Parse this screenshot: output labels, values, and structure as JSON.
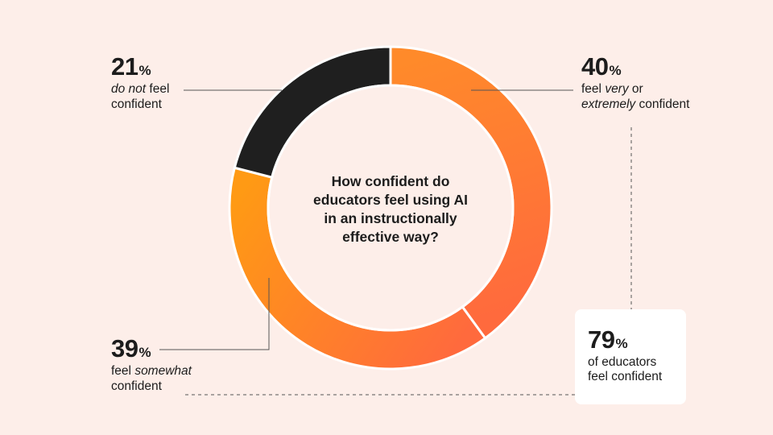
{
  "chart_data": {
    "type": "donut",
    "title": "How confident do educators feel using AI in an instructionally effective way?",
    "segments": [
      {
        "name": "very_or_extremely_confident",
        "value": 40,
        "color": "#ff6a3d",
        "color_start": "#ff8a2a",
        "label": {
          "pct": "40",
          "parts": [
            {
              "t": "feel "
            },
            {
              "t": "very",
              "i": true
            },
            {
              "t": " or"
            },
            {
              "br": true
            },
            {
              "t": "extremely",
              "i": true
            },
            {
              "t": " confident"
            }
          ]
        }
      },
      {
        "name": "somewhat_confident",
        "value": 39,
        "color": "#ff9a14",
        "color_start": "#ff6a3d",
        "label": {
          "pct": "39",
          "parts": [
            {
              "t": "feel "
            },
            {
              "t": "somewhat",
              "i": true
            },
            {
              "br": true
            },
            {
              "t": "confident"
            }
          ]
        }
      },
      {
        "name": "not_confident",
        "value": 21,
        "color": "#1f1f1f",
        "color_start": "#1f1f1f",
        "label": {
          "pct": "21",
          "parts": [
            {
              "t": "do not",
              "i": true
            },
            {
              "t": " feel"
            },
            {
              "br": true
            },
            {
              "t": "confident"
            }
          ]
        }
      }
    ],
    "percent_sign": "%"
  },
  "summary": {
    "pct": "79",
    "percent_sign": "%",
    "text_line1": "of educators",
    "text_line2": "feel confident"
  },
  "colors": {
    "background": "#fdeee9",
    "leader_line": "#555555",
    "text": "#1c1c1c",
    "card": "#ffffff"
  }
}
